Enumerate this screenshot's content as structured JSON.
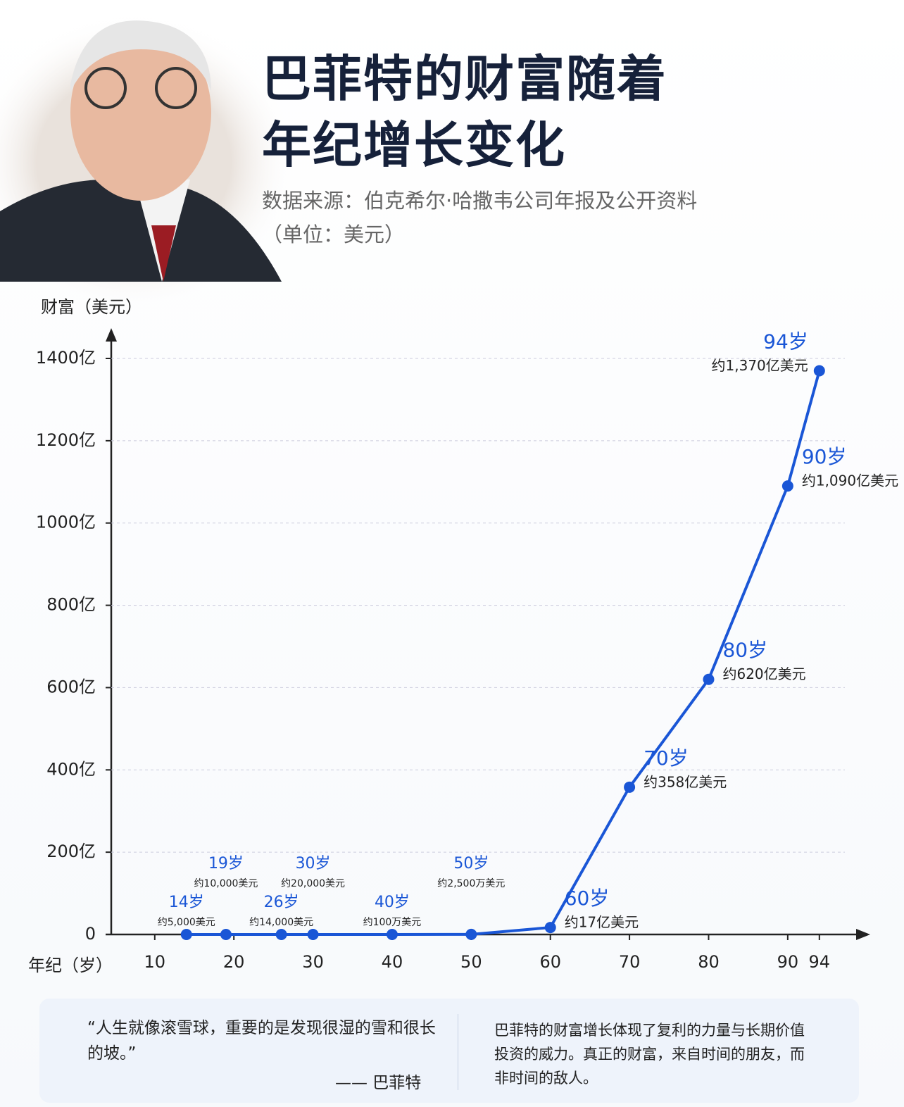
{
  "chart_data": {
    "type": "line",
    "title": [
      "巴菲特的财富随着",
      "年纪增长变化"
    ],
    "subtitle": [
      "数据来源：伯克希尔·哈撒韦公司年报及公开资料",
      "（单位：美元）"
    ],
    "ylabel": "财富（美元）",
    "xlabel": "年纪（岁）",
    "x": [
      14,
      19,
      26,
      30,
      40,
      50,
      60,
      70,
      80,
      90,
      94
    ],
    "point_labels": [
      "14岁",
      "19岁",
      "26岁",
      "30岁",
      "40岁",
      "50岁",
      "60岁",
      "70岁",
      "80岁",
      "90岁",
      "94岁"
    ],
    "values": [
      5e-05,
      0.0001,
      0.00014,
      0.0002,
      0.01,
      0.25,
      17,
      358,
      620,
      1090,
      1370
    ],
    "value_labels": [
      "约5,000美元",
      "约10,000美元",
      "约14,000美元",
      "约20,000美元",
      "约100万美元",
      "约2,500万美元",
      "约17亿美元",
      "约358亿美元",
      "约620亿美元",
      "约1,090亿美元",
      "约1,370亿美元"
    ],
    "color": "#1a56d6",
    "xlim": [
      4.5,
      99
    ],
    "xticks": [
      10,
      20,
      30,
      40,
      50,
      60,
      70,
      80,
      90,
      94
    ],
    "ylim": [
      0,
      1400
    ],
    "yticks": [
      0,
      {
        "value": 200,
        "label": "200亿"
      },
      {
        "value": 400,
        "label": "400亿"
      },
      {
        "value": 600,
        "label": "600亿"
      },
      {
        "value": 800,
        "label": "800亿"
      },
      {
        "value": 1000,
        "label": "1000亿"
      },
      {
        "value": 1200,
        "label": "1200亿"
      },
      {
        "value": 1400,
        "label": "1400亿"
      }
    ],
    "grid": true,
    "quote": "“人生就像滚雪球，重要的是发现很湿的雪和很长的坡。”",
    "quote_author": "—— 巴菲特",
    "note": "巴菲特的财富增长体现了复利的力量与长期价值投资的威力。真正的财富，来自时间的朋友，而非时间的敌人。"
  }
}
